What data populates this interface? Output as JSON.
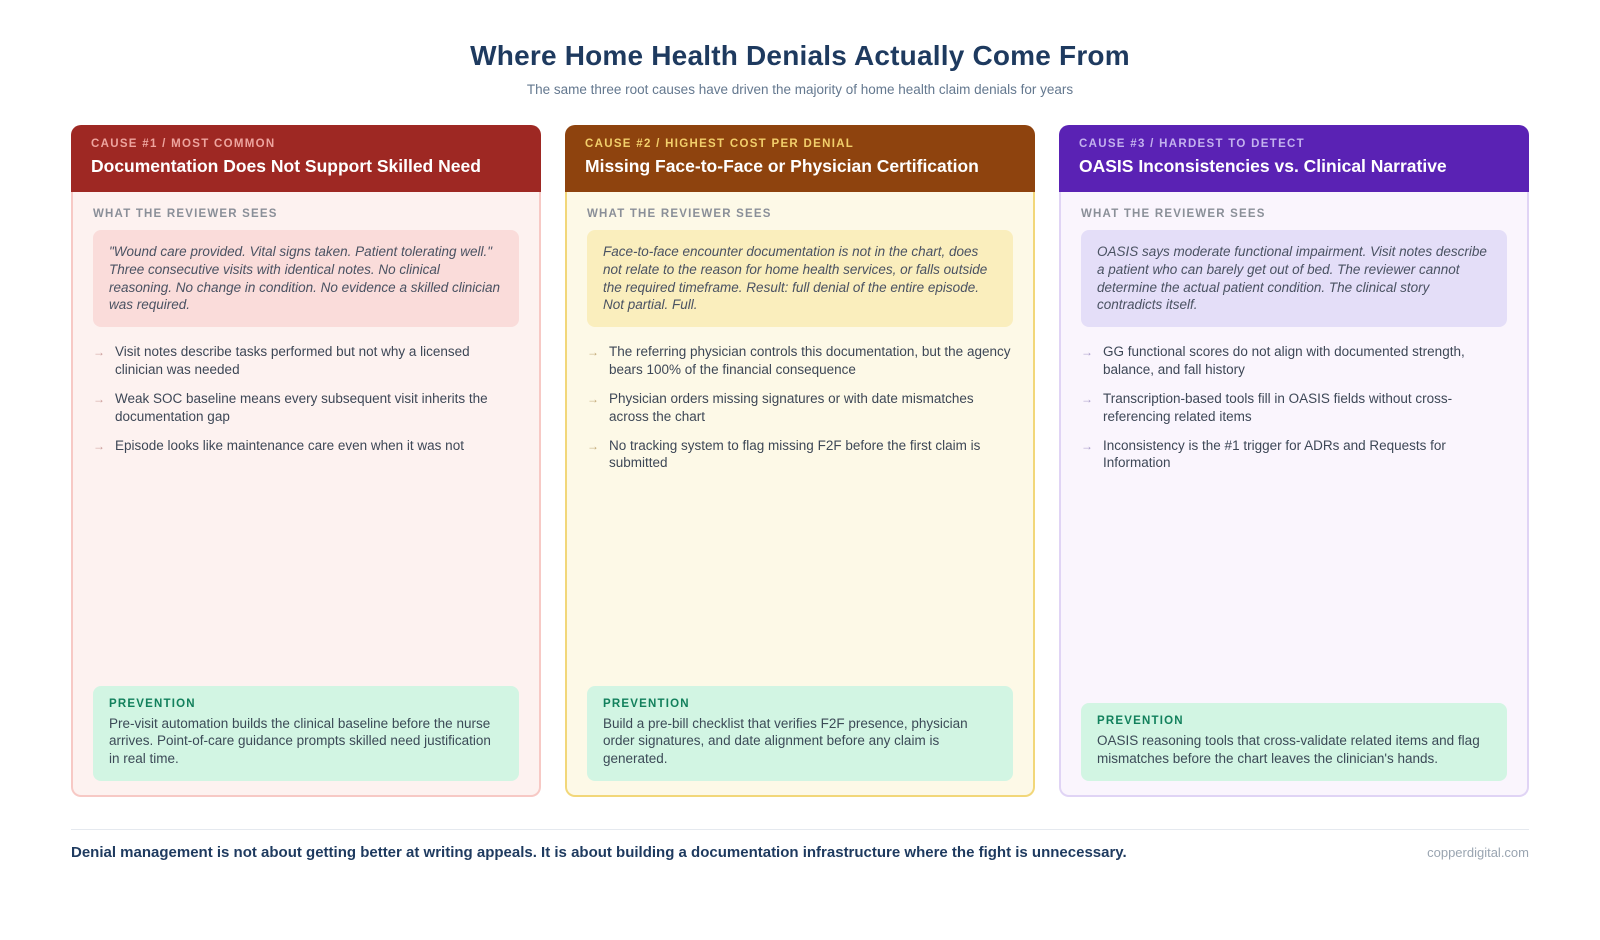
{
  "page": {
    "title": "Where Home Health Denials Actually Come From",
    "subtitle": "The same three root causes have driven the majority of home health claim denials for years",
    "footer_statement": "Denial management is not about getting better at writing appeals. It is about building a documentation infrastructure where the fight is unnecessary.",
    "footer_source": "copperdigital.com"
  },
  "labels": {
    "reviewer_sees": "WHAT THE REVIEWER SEES",
    "prevention": "PREVENTION",
    "bullet_glyph": "→"
  },
  "colors": {
    "title_navy": "#1e3a5f",
    "prevention_green_bg": "#d2f5e3",
    "prevention_green_label": "#12805c"
  },
  "cards": [
    {
      "kicker": "CAUSE #1 / MOST COMMON",
      "title": "Documentation Does Not Support Skilled Need",
      "accent": "#9e2823",
      "quote": "\"Wound care provided. Vital signs taken. Patient tolerating well.\" Three consecutive visits with identical notes. No clinical reasoning. No change in condition. No evidence a skilled clinician was required.",
      "bullets": [
        "Visit notes describe tasks performed but not why a licensed clinician was needed",
        "Weak SOC baseline means every subsequent visit inherits the documentation gap",
        "Episode looks like maintenance care even when it was not"
      ],
      "prevention": "Pre-visit automation builds the clinical baseline before the nurse arrives. Point-of-care guidance prompts skilled need justification in real time."
    },
    {
      "kicker": "CAUSE #2 / HIGHEST COST PER DENIAL",
      "title": "Missing Face-to-Face or Physician Certification",
      "accent": "#8e430e",
      "quote": "Face-to-face encounter documentation is not in the chart, does not relate to the reason for home health services, or falls outside the required timeframe. Result: full denial of the entire episode. Not partial. Full.",
      "bullets": [
        "The referring physician controls this documentation, but the agency bears 100% of the financial consequence",
        "Physician orders missing signatures or with date mismatches across the chart",
        "No tracking system to flag missing F2F before the first claim is submitted"
      ],
      "prevention": "Build a pre-bill checklist that verifies F2F presence, physician order signatures, and date alignment before any claim is generated."
    },
    {
      "kicker": "CAUSE #3 / HARDEST TO DETECT",
      "title": "OASIS Inconsistencies vs. Clinical Narrative",
      "accent": "#5a22b4",
      "quote": "OASIS says moderate functional impairment. Visit notes describe a patient who can barely get out of bed. The reviewer cannot determine the actual patient condition. The clinical story contradicts itself.",
      "bullets": [
        "GG functional scores do not align with documented strength, balance, and fall history",
        "Transcription-based tools fill in OASIS fields without cross-referencing related items",
        "Inconsistency is the #1 trigger for ADRs and Requests for Information"
      ],
      "prevention": "OASIS reasoning tools that cross-validate related items and flag mismatches before the chart leaves the clinician's hands."
    }
  ]
}
